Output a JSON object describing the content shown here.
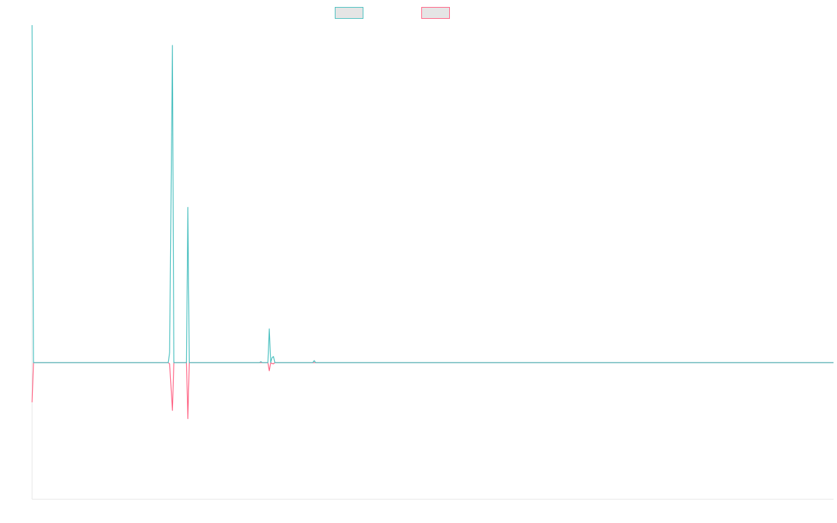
{
  "chart_data": {
    "type": "line",
    "title": "",
    "xlabel": "",
    "ylabel": "",
    "grid": false,
    "legend": "top-center",
    "xlim": [
      0,
      571
    ],
    "ylim": [
      -100,
      100
    ],
    "baseline": 0,
    "series": [
      {
        "color": "#4bc0c0",
        "legend_fill": "#e5e5e5",
        "points": [
          [
            0,
            100
          ],
          [
            1,
            0
          ],
          [
            97,
            0
          ],
          [
            98,
            3
          ],
          [
            100,
            94
          ],
          [
            101,
            0
          ],
          [
            110,
            0
          ],
          [
            111,
            46
          ],
          [
            112,
            0
          ],
          [
            162,
            0
          ],
          [
            163,
            0.3
          ],
          [
            164,
            0
          ],
          [
            168,
            0
          ],
          [
            169,
            10
          ],
          [
            170,
            0
          ],
          [
            171,
            1.5
          ],
          [
            172,
            1.8
          ],
          [
            173,
            0
          ],
          [
            200,
            0
          ],
          [
            201,
            0.6
          ],
          [
            202,
            0
          ],
          [
            571,
            0
          ]
        ]
      },
      {
        "color": "#ff6384",
        "legend_fill": "#e5e5e5",
        "points": [
          [
            0,
            -29
          ],
          [
            1,
            0
          ],
          [
            97,
            0
          ],
          [
            98,
            -1
          ],
          [
            100,
            -35
          ],
          [
            101,
            0
          ],
          [
            110,
            0
          ],
          [
            111,
            -41
          ],
          [
            112,
            0
          ],
          [
            168,
            0
          ],
          [
            169,
            -6
          ],
          [
            170,
            0
          ],
          [
            171,
            -0.7
          ],
          [
            172,
            -0.9
          ],
          [
            173,
            0
          ],
          [
            571,
            0
          ]
        ]
      }
    ]
  }
}
